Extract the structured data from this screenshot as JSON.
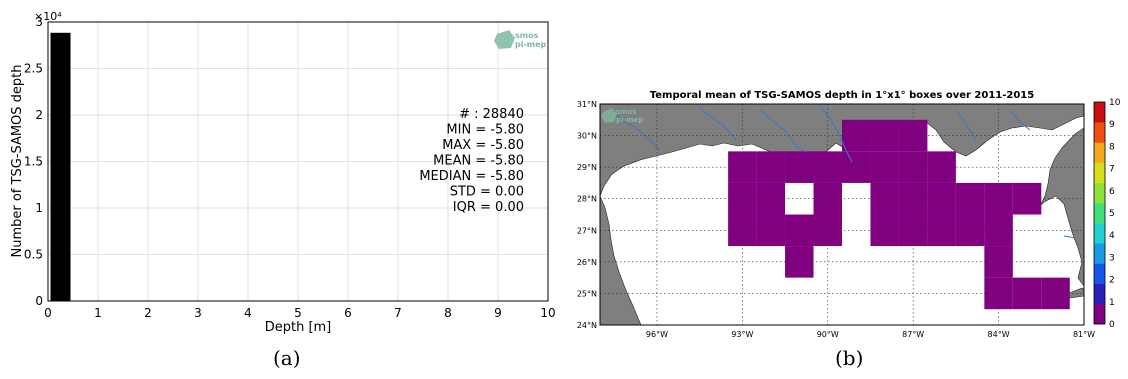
{
  "panels": [
    {
      "caption": "(a)",
      "chart_data": {
        "type": "bar",
        "title": "",
        "xlabel": "Depth [m]",
        "ylabel": "Number of TSG-SAMOS depth",
        "y_offset_label": "×10⁴",
        "xlim": [
          0,
          10
        ],
        "ylim": [
          0,
          30000
        ],
        "xticks": [
          0,
          1,
          2,
          3,
          4,
          5,
          6,
          7,
          8,
          9,
          10
        ],
        "xtick_labels": [
          "0",
          "1",
          "2",
          "3",
          "4",
          "5",
          "6",
          "7",
          "8",
          "9",
          "10"
        ],
        "yticks": [
          0,
          5000,
          10000,
          15000,
          20000,
          25000,
          30000
        ],
        "ytick_labels": [
          "0",
          "0.5",
          "1",
          "1.5",
          "2",
          "2.5",
          "3"
        ],
        "grid": true,
        "bars": [
          {
            "x0": 0.05,
            "x1": 0.45,
            "value": 28840
          }
        ],
        "bar_color": "#000000",
        "stats": [
          "# : 28840",
          "MIN = -5.80",
          "MAX =  -5.80",
          "MEAN = -5.80",
          "MEDIAN = -5.80",
          "STD = 0.00",
          "IQR = 0.00"
        ],
        "logo": {
          "line1": "smos",
          "line2": "pi-mep",
          "color": "#7fb8a0"
        }
      }
    },
    {
      "caption": "(b)",
      "chart_data": {
        "type": "heatmap",
        "title": "Temporal mean of TSG-SAMOS depth in 1°x1° boxes over 2011-2015",
        "xlim": [
          -98,
          -81
        ],
        "ylim": [
          24,
          31
        ],
        "xticks": [
          -96,
          -93,
          -90,
          -87,
          -84,
          -81
        ],
        "xtick_labels": [
          "96°W",
          "93°W",
          "90°W",
          "87°W",
          "84°W",
          "81°W"
        ],
        "yticks": [
          24,
          25,
          26,
          27,
          28,
          29,
          30,
          31
        ],
        "ytick_labels": [
          "24°N",
          "25°N",
          "26°N",
          "27°N",
          "28°N",
          "29°N",
          "30°N",
          "31°N"
        ],
        "land_color": "#7f7f7f",
        "ocean_color": "#ffffff",
        "river_color": "#3a78c2",
        "cell_color": "#800080",
        "cells_value": 0,
        "cells": [
          [
            -93.5,
            -92.5,
            26.5,
            27.5
          ],
          [
            -93.5,
            -92.5,
            27.5,
            28.5
          ],
          [
            -93.5,
            -92.5,
            28.5,
            29.5
          ],
          [
            -92.5,
            -91.5,
            26.5,
            27.5
          ],
          [
            -92.5,
            -91.5,
            27.5,
            28.5
          ],
          [
            -92.5,
            -91.5,
            28.5,
            29.5
          ],
          [
            -91.5,
            -90.5,
            25.5,
            26.5
          ],
          [
            -91.5,
            -90.5,
            26.5,
            27.5
          ],
          [
            -91.5,
            -90.5,
            28.5,
            29.5
          ],
          [
            -90.5,
            -89.5,
            26.5,
            27.5
          ],
          [
            -90.5,
            -89.5,
            27.5,
            28.5
          ],
          [
            -90.5,
            -89.5,
            28.5,
            29.5
          ],
          [
            -89.5,
            -88.5,
            28.5,
            29.5
          ],
          [
            -89.5,
            -88.5,
            29.5,
            30.5
          ],
          [
            -88.5,
            -87.5,
            26.5,
            27.5
          ],
          [
            -88.5,
            -87.5,
            27.5,
            28.5
          ],
          [
            -88.5,
            -87.5,
            28.5,
            29.5
          ],
          [
            -88.5,
            -87.5,
            29.5,
            30.5
          ],
          [
            -87.5,
            -86.5,
            26.5,
            27.5
          ],
          [
            -87.5,
            -86.5,
            27.5,
            28.5
          ],
          [
            -87.5,
            -86.5,
            28.5,
            29.5
          ],
          [
            -87.5,
            -86.5,
            29.5,
            30.5
          ],
          [
            -86.5,
            -85.5,
            26.5,
            27.5
          ],
          [
            -86.5,
            -85.5,
            27.5,
            28.5
          ],
          [
            -86.5,
            -85.5,
            28.5,
            29.5
          ],
          [
            -85.5,
            -84.5,
            26.5,
            27.5
          ],
          [
            -85.5,
            -84.5,
            27.5,
            28.5
          ],
          [
            -84.5,
            -83.5,
            24.5,
            25.5
          ],
          [
            -84.5,
            -83.5,
            25.5,
            26.5
          ],
          [
            -84.5,
            -83.5,
            26.5,
            27.5
          ],
          [
            -84.5,
            -83.5,
            27.5,
            28.5
          ],
          [
            -83.5,
            -82.5,
            24.5,
            25.5
          ],
          [
            -83.5,
            -82.5,
            27.5,
            28.5
          ],
          [
            -82.5,
            -81.5,
            24.5,
            25.5
          ]
        ],
        "colorbar": {
          "min": 0,
          "max": 10,
          "tick_labels": [
            "0",
            "1",
            "2",
            "3",
            "4",
            "5",
            "6",
            "7",
            "8",
            "9",
            "10"
          ],
          "colors": [
            "#800080",
            "#2a1fb8",
            "#1456e8",
            "#1a9ae6",
            "#22d0d4",
            "#3fe07a",
            "#8ee236",
            "#d4e01e",
            "#f2a81a",
            "#ec4e14",
            "#c80e0e"
          ]
        },
        "logo": {
          "line1": "smos",
          "line2": "pi-mep",
          "color": "#7fb8a0"
        }
      }
    }
  ]
}
